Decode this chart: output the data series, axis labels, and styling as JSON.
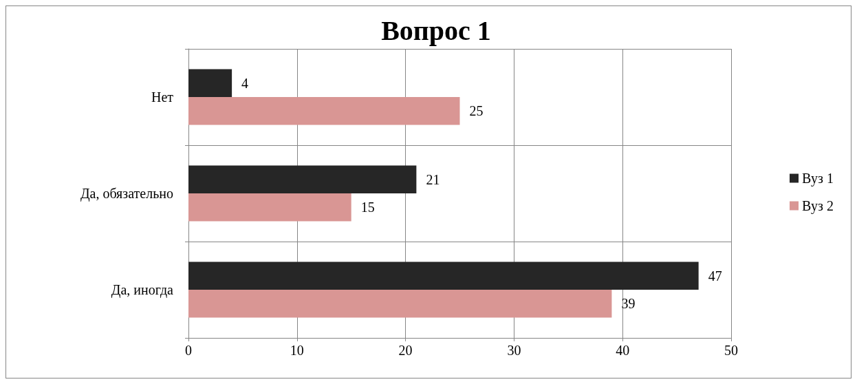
{
  "chart_data": {
    "type": "bar",
    "title": "Вопрос 1",
    "orientation": "horizontal",
    "categories": [
      "Нет",
      "Да, обязательно",
      "Да, иногда"
    ],
    "series": [
      {
        "name": "Вуз 1",
        "color": "#262626",
        "values": [
          4,
          21,
          47
        ]
      },
      {
        "name": "Вуз 2",
        "color": "#d99694",
        "values": [
          25,
          15,
          39
        ]
      }
    ],
    "xlim": [
      0,
      50
    ],
    "xticks": [
      0,
      10,
      20,
      30,
      40,
      50
    ],
    "grid": true,
    "legend": "right",
    "data_labels": true
  }
}
